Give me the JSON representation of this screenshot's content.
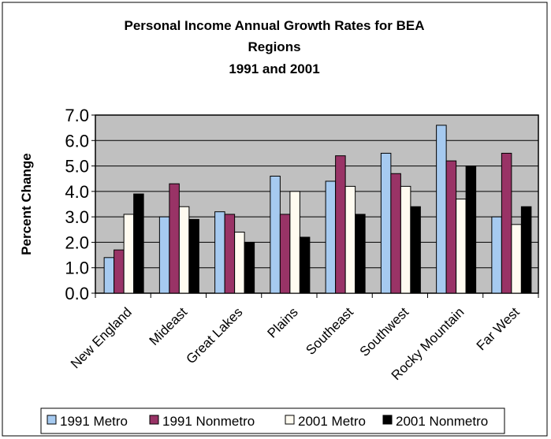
{
  "chart_data": {
    "type": "bar",
    "title": [
      "Personal Income Annual Growth Rates for BEA",
      "Regions",
      "1991 and 2001"
    ],
    "ylabel": "Percent Change",
    "xlabel": "",
    "ylim": [
      0,
      7
    ],
    "yticks": [
      "0.0",
      "1.0",
      "2.0",
      "3.0",
      "4.0",
      "5.0",
      "6.0",
      "7.0"
    ],
    "grid": true,
    "legend": "bottom",
    "categories": [
      "New England",
      "Mideast",
      "Great Lakes",
      "Plains",
      "Southeast",
      "Southwest",
      "Rocky Mountain",
      "Far West"
    ],
    "series": [
      {
        "name": "1991 Metro",
        "color": "#A6CAF0",
        "values": [
          1.4,
          3.0,
          3.2,
          4.6,
          4.4,
          5.5,
          6.6,
          3.0
        ]
      },
      {
        "name": "1991 Nonmetro",
        "color": "#993366",
        "values": [
          1.7,
          4.3,
          3.1,
          3.1,
          5.4,
          4.7,
          5.2,
          5.5
        ]
      },
      {
        "name": "2001 Metro",
        "color": "#FFFBF0",
        "values": [
          3.1,
          3.4,
          2.4,
          4.0,
          4.2,
          4.2,
          3.7,
          2.7
        ]
      },
      {
        "name": "2001 Nonmetro",
        "color": "#000000",
        "values": [
          3.9,
          2.9,
          2.0,
          2.2,
          3.1,
          3.4,
          5.0,
          3.4
        ]
      }
    ],
    "plot_background": "#C0C0C0"
  }
}
